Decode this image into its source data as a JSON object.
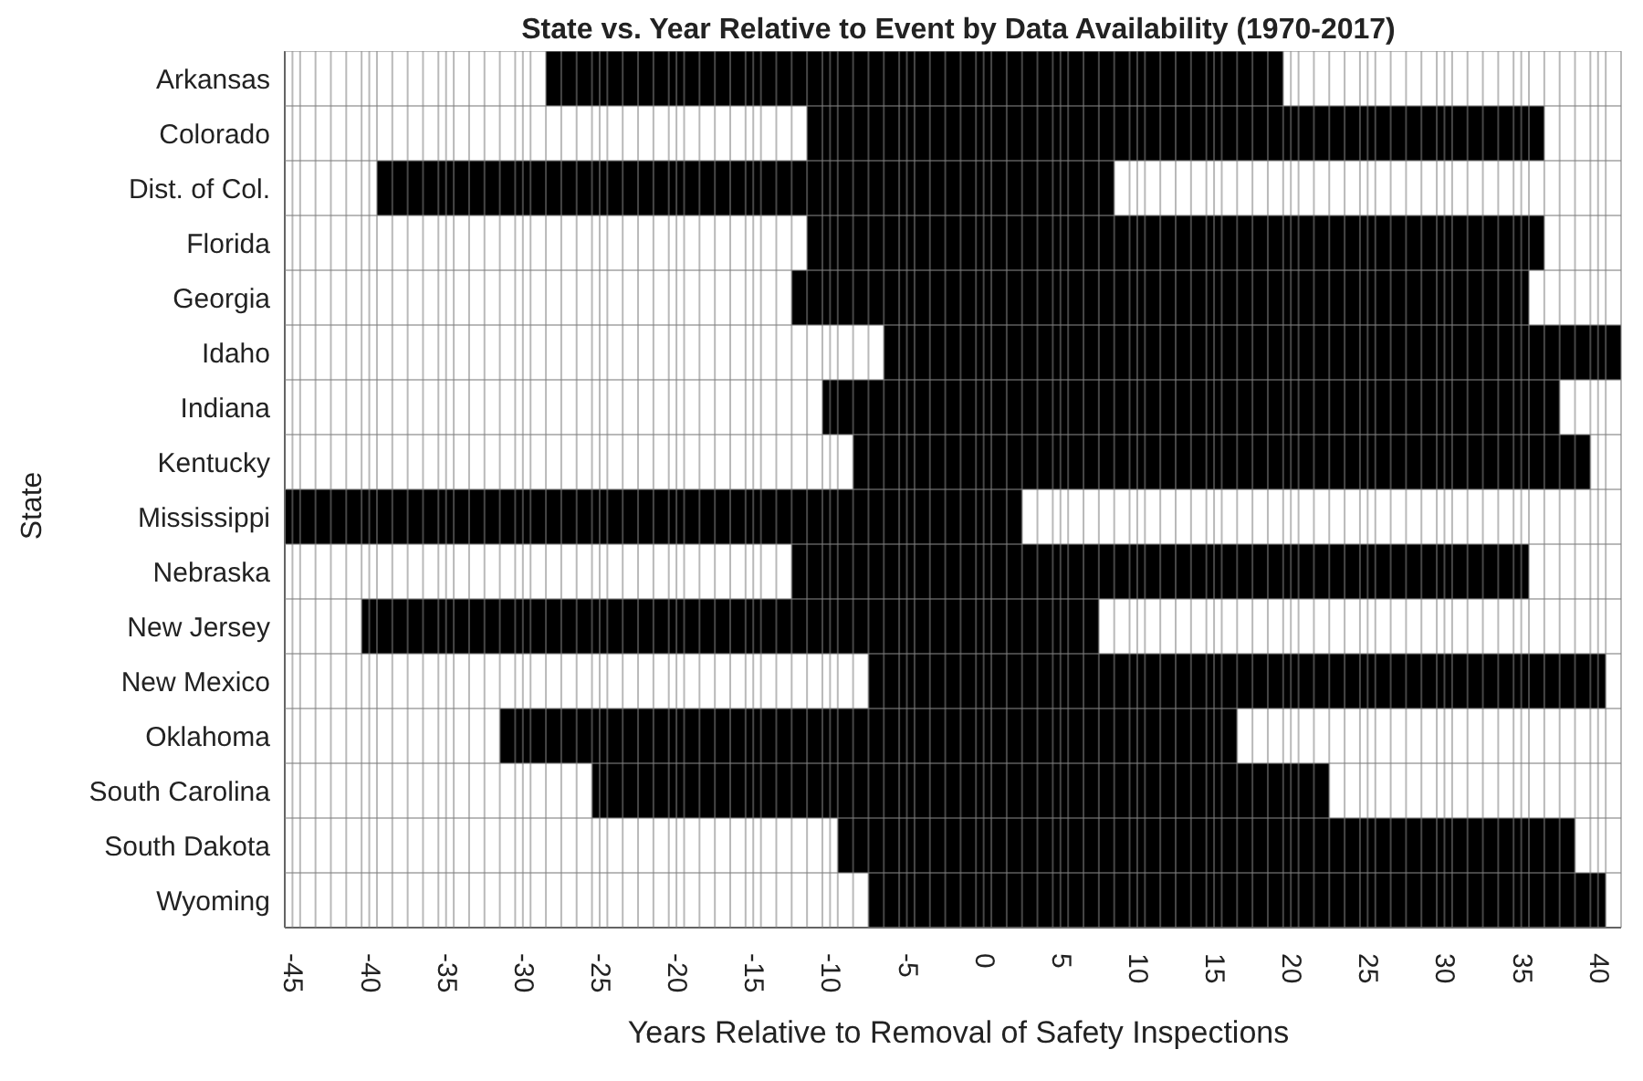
{
  "chart_data": {
    "type": "bar",
    "orientation": "horizontal",
    "title": "State vs. Year Relative to Event by Data Availability (1970-2017)",
    "xlabel": "Years Relative to Removal of Safety Inspections",
    "ylabel": "State",
    "categories": [
      "Arkansas",
      "Colorado",
      "Dist. of Col.",
      "Florida",
      "Georgia",
      "Idaho",
      "Indiana",
      "Kentucky",
      "Mississippi",
      "Nebraska",
      "New Jersey",
      "New Mexico",
      "Oklahoma",
      "South Carolina",
      "South Dakota",
      "Wyoming"
    ],
    "series": [
      {
        "color": "#000000",
        "base": [
          -28.5,
          -11.5,
          -39.5,
          -11.5,
          -12.5,
          -6.5,
          -10.5,
          -8.5,
          -45.5,
          -12.5,
          -40.5,
          -7.5,
          -31.5,
          -25.5,
          -9.5,
          -7.5
        ],
        "values": [
          48,
          48,
          48,
          48,
          48,
          48,
          48,
          48,
          48,
          48,
          48,
          48,
          48,
          48,
          48,
          48
        ]
      }
    ],
    "xlim": [
      -45.5,
      41.5
    ],
    "xticks": [
      {
        "value": -45.5,
        "label": null
      },
      -45,
      {
        "value": -44.5,
        "label": null
      },
      {
        "value": -43.5,
        "label": null
      },
      {
        "value": -42.5,
        "label": null
      },
      {
        "value": -41.5,
        "label": null
      },
      {
        "value": -40.5,
        "label": null
      },
      -40,
      {
        "value": -39.5,
        "label": null
      },
      {
        "value": -38.5,
        "label": null
      },
      {
        "value": -37.5,
        "label": null
      },
      {
        "value": -36.5,
        "label": null
      },
      {
        "value": -35.5,
        "label": null
      },
      -35,
      {
        "value": -34.5,
        "label": null
      },
      {
        "value": -33.5,
        "label": null
      },
      {
        "value": -32.5,
        "label": null
      },
      {
        "value": -31.5,
        "label": null
      },
      {
        "value": -30.5,
        "label": null
      },
      -30,
      {
        "value": -29.5,
        "label": null
      },
      {
        "value": -28.5,
        "label": null
      },
      {
        "value": -27.5,
        "label": null
      },
      {
        "value": -26.5,
        "label": null
      },
      {
        "value": -25.5,
        "label": null
      },
      -25,
      {
        "value": -24.5,
        "label": null
      },
      {
        "value": -23.5,
        "label": null
      },
      {
        "value": -22.5,
        "label": null
      },
      {
        "value": -21.5,
        "label": null
      },
      {
        "value": -20.5,
        "label": null
      },
      -20,
      {
        "value": -19.5,
        "label": null
      },
      {
        "value": -18.5,
        "label": null
      },
      {
        "value": -17.5,
        "label": null
      },
      {
        "value": -16.5,
        "label": null
      },
      {
        "value": -15.5,
        "label": null
      },
      -15,
      {
        "value": -14.5,
        "label": null
      },
      {
        "value": -13.5,
        "label": null
      },
      {
        "value": -12.5,
        "label": null
      },
      {
        "value": -11.5,
        "label": null
      },
      {
        "value": -10.5,
        "label": null
      },
      -10,
      {
        "value": -9.5,
        "label": null
      },
      {
        "value": -8.5,
        "label": null
      },
      {
        "value": -7.5,
        "label": null
      },
      {
        "value": -6.5,
        "label": null
      },
      {
        "value": -5.5,
        "label": null
      },
      -5,
      {
        "value": -4.5,
        "label": null
      },
      {
        "value": -3.5,
        "label": null
      },
      {
        "value": -2.5,
        "label": null
      },
      {
        "value": -1.5,
        "label": null
      },
      {
        "value": -0.5,
        "label": null
      },
      0,
      {
        "value": 0.5,
        "label": null
      },
      {
        "value": 1.5,
        "label": null
      },
      {
        "value": 2.5,
        "label": null
      },
      {
        "value": 3.5,
        "label": null
      },
      {
        "value": 4.5,
        "label": null
      },
      5,
      {
        "value": 5.5,
        "label": null
      },
      {
        "value": 6.5,
        "label": null
      },
      {
        "value": 7.5,
        "label": null
      },
      {
        "value": 8.5,
        "label": null
      },
      {
        "value": 9.5,
        "label": null
      },
      10,
      {
        "value": 10.5,
        "label": null
      },
      {
        "value": 11.5,
        "label": null
      },
      {
        "value": 12.5,
        "label": null
      },
      {
        "value": 13.5,
        "label": null
      },
      {
        "value": 14.5,
        "label": null
      },
      15,
      {
        "value": 15.5,
        "label": null
      },
      {
        "value": 16.5,
        "label": null
      },
      {
        "value": 17.5,
        "label": null
      },
      {
        "value": 18.5,
        "label": null
      },
      {
        "value": 19.5,
        "label": null
      },
      20,
      {
        "value": 20.5,
        "label": null
      },
      {
        "value": 21.5,
        "label": null
      },
      {
        "value": 22.5,
        "label": null
      },
      {
        "value": 23.5,
        "label": null
      },
      {
        "value": 24.5,
        "label": null
      },
      25,
      {
        "value": 25.5,
        "label": null
      },
      {
        "value": 26.5,
        "label": null
      },
      {
        "value": 27.5,
        "label": null
      },
      {
        "value": 28.5,
        "label": null
      },
      {
        "value": 29.5,
        "label": null
      },
      30,
      {
        "value": 30.5,
        "label": null
      },
      {
        "value": 31.5,
        "label": null
      },
      {
        "value": 32.5,
        "label": null
      },
      {
        "value": 33.5,
        "label": null
      },
      {
        "value": 34.5,
        "label": null
      },
      35,
      {
        "value": 35.5,
        "label": null
      },
      {
        "value": 36.5,
        "label": null
      },
      {
        "value": 37.5,
        "label": null
      },
      {
        "value": 38.5,
        "label": null
      },
      {
        "value": 39.5,
        "label": null
      },
      40,
      {
        "value": 40.5,
        "label": null
      },
      {
        "value": 41.5,
        "label": null
      }
    ],
    "grid": true
  }
}
